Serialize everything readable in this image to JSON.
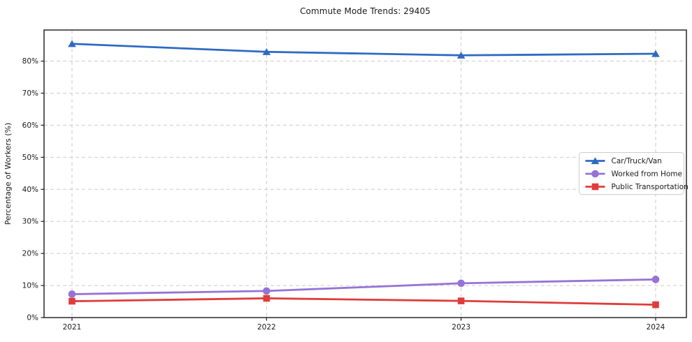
{
  "chart_data": {
    "type": "line",
    "title": "Commute Mode Trends: 29405",
    "xlabel": "",
    "ylabel": "Percentage of Workers (%)",
    "categories": [
      "2021",
      "2022",
      "2023",
      "2024"
    ],
    "series": [
      {
        "name": "Car/Truck/Van",
        "color": "#2e6ac3",
        "marker": "triangle",
        "values": [
          85.4,
          82.9,
          81.8,
          82.3
        ]
      },
      {
        "name": "Worked from Home",
        "color": "#9673d6",
        "marker": "circle",
        "values": [
          7.3,
          8.3,
          10.7,
          11.9
        ]
      },
      {
        "name": "Public Transportation",
        "color": "#e03c3c",
        "marker": "square",
        "values": [
          5.1,
          6.0,
          5.2,
          4.0
        ]
      }
    ],
    "ylim": [
      0,
      89.7
    ],
    "yticks": [
      0,
      10,
      20,
      30,
      40,
      50,
      60,
      70,
      80
    ],
    "ytick_suffix": "%",
    "grid": true,
    "grid_style": "dashed",
    "legend_position": "center right",
    "legend_labels": [
      "Car/Truck/Van",
      "Worked from Home",
      "Public Transportation"
    ]
  },
  "style": {
    "grid_color": "#cbcbcb",
    "spine_color": "#1a1a1a",
    "tick_label_color": "#1a1a1a",
    "legend_border_color": "#cccccc",
    "background": "#ffffff"
  }
}
